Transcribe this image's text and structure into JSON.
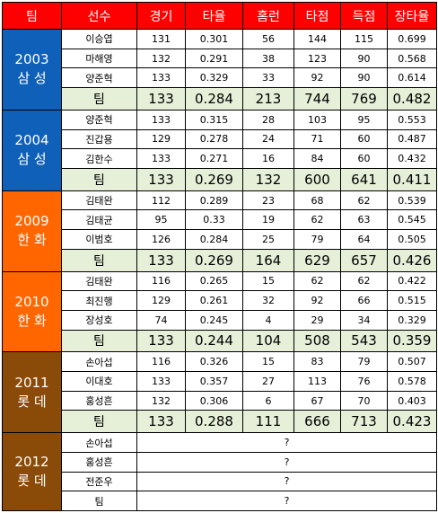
{
  "header": [
    "팀",
    "선수",
    "경기",
    "타율",
    "홈런",
    "타점",
    "득점",
    "장타율"
  ],
  "teams": [
    {
      "year": "2003",
      "name": "삼 성",
      "color": "#0f60b8",
      "players": [
        {
          "name": "이승엽",
          "g": "131",
          "avg": "0.301",
          "hr": "56",
          "rbi": "144",
          "r": "115",
          "slg": "0.699"
        },
        {
          "name": "마해영",
          "g": "132",
          "avg": "0.291",
          "hr": "38",
          "rbi": "123",
          "r": "90",
          "slg": "0.568"
        },
        {
          "name": "양준혁",
          "g": "133",
          "avg": "0.329",
          "hr": "33",
          "rbi": "92",
          "r": "90",
          "slg": "0.614"
        }
      ],
      "total": {
        "name": "팀",
        "g": "133",
        "avg": "0.284",
        "hr": "213",
        "rbi": "744",
        "r": "769",
        "slg": "0.482"
      }
    },
    {
      "year": "2004",
      "name": "삼 성",
      "color": "#0f60b8",
      "players": [
        {
          "name": "양준혁",
          "g": "133",
          "avg": "0.315",
          "hr": "28",
          "rbi": "103",
          "r": "95",
          "slg": "0.553"
        },
        {
          "name": "진갑용",
          "g": "129",
          "avg": "0.278",
          "hr": "24",
          "rbi": "71",
          "r": "60",
          "slg": "0.487"
        },
        {
          "name": "김한수",
          "g": "133",
          "avg": "0.271",
          "hr": "16",
          "rbi": "84",
          "r": "60",
          "slg": "0.432"
        }
      ],
      "total": {
        "name": "팀",
        "g": "133",
        "avg": "0.269",
        "hr": "132",
        "rbi": "600",
        "r": "641",
        "slg": "0.411"
      }
    },
    {
      "year": "2009",
      "name": "한 화",
      "color": "#ff6600",
      "players": [
        {
          "name": "김태완",
          "g": "112",
          "avg": "0.289",
          "hr": "23",
          "rbi": "68",
          "r": "62",
          "slg": "0.539"
        },
        {
          "name": "김태균",
          "g": "95",
          "avg": "0.33",
          "hr": "19",
          "rbi": "62",
          "r": "63",
          "slg": "0.545"
        },
        {
          "name": "이범호",
          "g": "126",
          "avg": "0.284",
          "hr": "25",
          "rbi": "79",
          "r": "64",
          "slg": "0.505"
        }
      ],
      "total": {
        "name": "팀",
        "g": "133",
        "avg": "0.269",
        "hr": "164",
        "rbi": "629",
        "r": "657",
        "slg": "0.426"
      }
    },
    {
      "year": "2010",
      "name": "한 화",
      "color": "#ff6600",
      "players": [
        {
          "name": "김태완",
          "g": "116",
          "avg": "0.265",
          "hr": "15",
          "rbi": "62",
          "r": "62",
          "slg": "0.422"
        },
        {
          "name": "최진행",
          "g": "129",
          "avg": "0.261",
          "hr": "32",
          "rbi": "92",
          "r": "66",
          "slg": "0.515"
        },
        {
          "name": "장성호",
          "g": "74",
          "avg": "0.245",
          "hr": "4",
          "rbi": "29",
          "r": "34",
          "slg": "0.329"
        }
      ],
      "total": {
        "name": "팀",
        "g": "133",
        "avg": "0.244",
        "hr": "104",
        "rbi": "508",
        "r": "543",
        "slg": "0.359"
      }
    },
    {
      "year": "2011",
      "name": "롯 데",
      "color": "#8a4b08",
      "players": [
        {
          "name": "손아섭",
          "g": "116",
          "avg": "0.326",
          "hr": "15",
          "rbi": "83",
          "r": "79",
          "slg": "0.507"
        },
        {
          "name": "이대호",
          "g": "133",
          "avg": "0.357",
          "hr": "27",
          "rbi": "113",
          "r": "76",
          "slg": "0.578"
        },
        {
          "name": "홍성흔",
          "g": "132",
          "avg": "0.306",
          "hr": "6",
          "rbi": "67",
          "r": "70",
          "slg": "0.403"
        }
      ],
      "total": {
        "name": "팀",
        "g": "133",
        "avg": "0.288",
        "hr": "111",
        "rbi": "666",
        "r": "713",
        "slg": "0.423"
      }
    },
    {
      "year": "2012",
      "name": "롯 데",
      "color": "#8a4b08",
      "unknown": [
        {
          "name": "손아섭",
          "value": "?"
        },
        {
          "name": "홍성흔",
          "value": "?"
        },
        {
          "name": "전준우",
          "value": "?"
        },
        {
          "name": "팀",
          "value": "?"
        }
      ]
    }
  ]
}
